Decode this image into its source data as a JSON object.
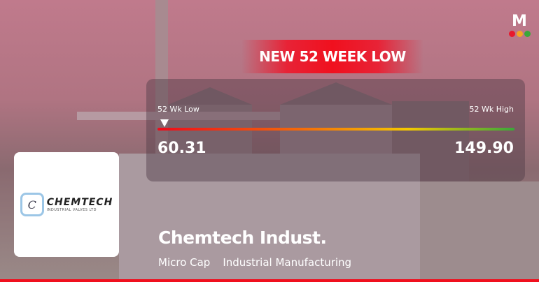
{
  "brand": {
    "logo_letter": "M",
    "dot_colors": [
      "#e8192c",
      "#f5a623",
      "#3aa83a"
    ]
  },
  "banner": {
    "text": "NEW 52 WEEK LOW",
    "color": "#f0101e"
  },
  "range": {
    "low_label": "52 Wk Low",
    "high_label": "52 Wk High",
    "low_value": "60.31",
    "high_value": "149.90",
    "current_position_percent": 0
  },
  "company": {
    "logo_name": "CHEMTECH",
    "logo_subtitle": "INDUSTRIAL VALVES LTD",
    "logo_initial": "C",
    "name": "Chemtech Indust.",
    "tags": [
      "Micro Cap",
      "Industrial Manufacturing"
    ]
  }
}
